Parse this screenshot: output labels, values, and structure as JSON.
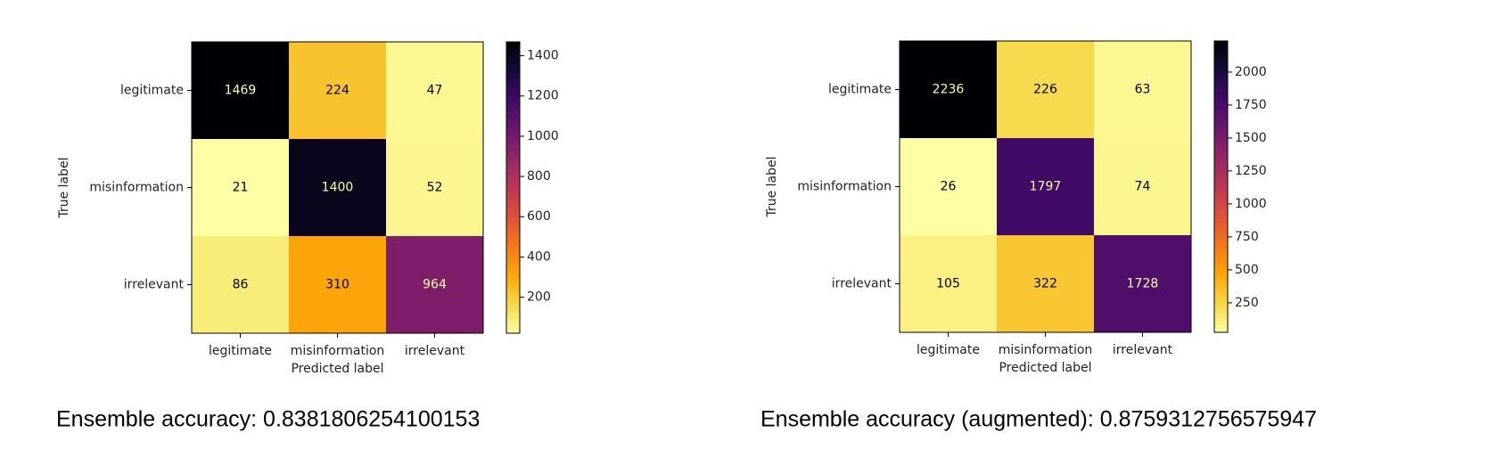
{
  "chart_data": [
    {
      "type": "heatmap",
      "x_label": "Predicted label",
      "y_label": "True label",
      "x_categories": [
        "legitimate",
        "misinformation",
        "irrelevant"
      ],
      "y_categories": [
        "legitimate",
        "misinformation",
        "irrelevant"
      ],
      "values": [
        [
          1469,
          224,
          47
        ],
        [
          21,
          1400,
          52
        ],
        [
          86,
          310,
          964
        ]
      ],
      "colormap": "inferno_r",
      "clim": [
        21,
        1469
      ],
      "cticks": [
        200,
        400,
        600,
        800,
        1000,
        1200,
        1400
      ],
      "caption": "Ensemble accuracy: 0.8381806254100153"
    },
    {
      "type": "heatmap",
      "x_label": "Predicted label",
      "y_label": "True label",
      "x_categories": [
        "legitimate",
        "misinformation",
        "irrelevant"
      ],
      "y_categories": [
        "legitimate",
        "misinformation",
        "irrelevant"
      ],
      "values": [
        [
          2236,
          226,
          63
        ],
        [
          26,
          1797,
          74
        ],
        [
          105,
          322,
          1728
        ]
      ],
      "colormap": "inferno_r",
      "clim": [
        26,
        2236
      ],
      "cticks": [
        250,
        500,
        750,
        1000,
        1250,
        1500,
        1750,
        2000
      ],
      "caption": "Ensemble accuracy (augmented): 0.8759312756575947"
    }
  ]
}
